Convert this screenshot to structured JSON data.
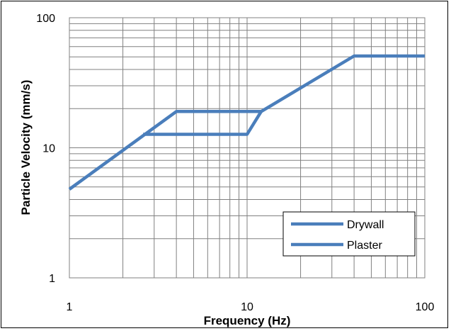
{
  "chart_data": {
    "type": "line",
    "xlabel": "Frequency (Hz)",
    "ylabel": "Particle Velocity (mm/s)",
    "x_scale": "log",
    "y_scale": "log",
    "xlim": [
      1,
      100
    ],
    "ylim": [
      1,
      100
    ],
    "x_ticks": [
      "1",
      "10",
      "100"
    ],
    "y_ticks": [
      "1",
      "10",
      "100"
    ],
    "grid": true,
    "legend_position": "bottom-right",
    "line_color": "#4A7EBB",
    "series": [
      {
        "name": "Drywall",
        "x": [
          1,
          4,
          12,
          40,
          100
        ],
        "y": [
          4.8,
          19,
          19,
          50.8,
          50.8
        ]
      },
      {
        "name": "Plaster",
        "x": [
          2.6,
          10,
          12
        ],
        "y": [
          12.7,
          12.7,
          19
        ]
      }
    ]
  }
}
